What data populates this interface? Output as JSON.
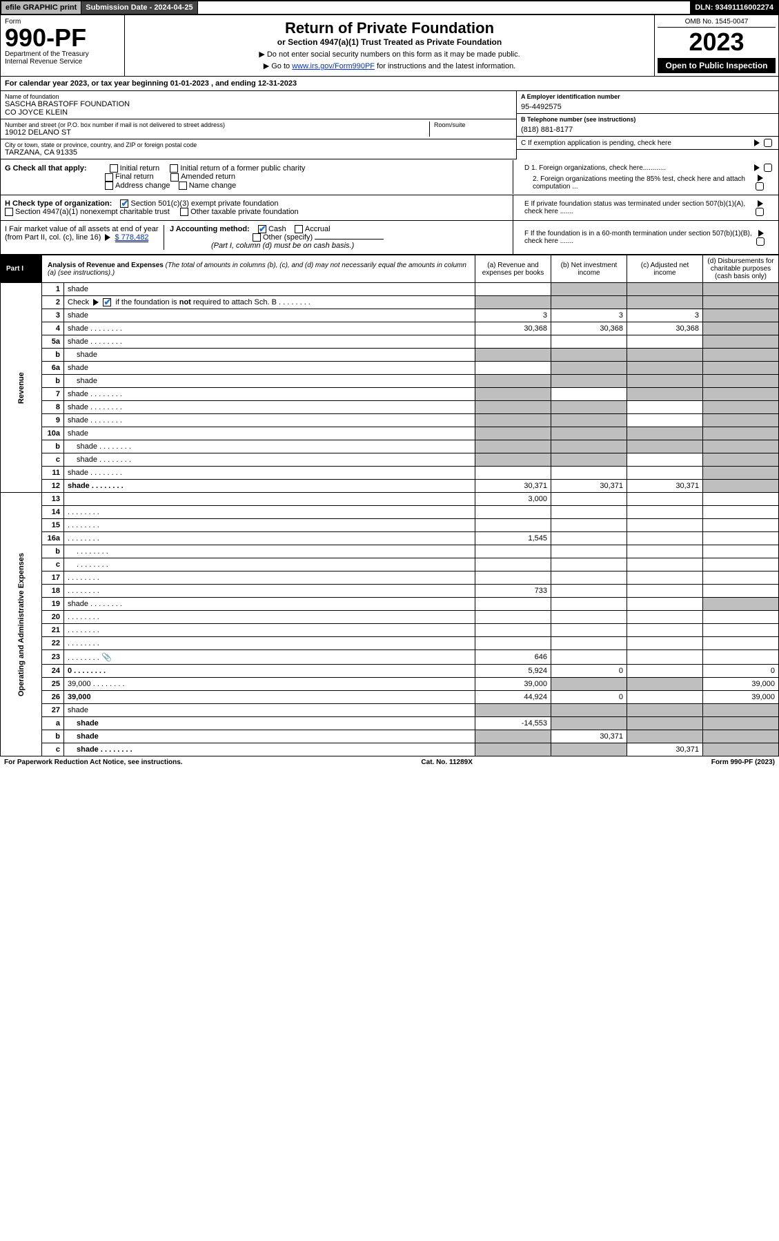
{
  "topbar": {
    "efile": "efile GRAPHIC print",
    "subdate_label": "Submission Date - 2024-04-25",
    "dln": "DLN: 93491116002274"
  },
  "header": {
    "form_label": "Form",
    "form_num": "990-PF",
    "dept": "Department of the Treasury",
    "irs": "Internal Revenue Service",
    "title": "Return of Private Foundation",
    "subtitle": "or Section 4947(a)(1) Trust Treated as Private Foundation",
    "instr1": "▶ Do not enter social security numbers on this form as it may be made public.",
    "instr2_pre": "▶ Go to ",
    "instr2_link": "www.irs.gov/Form990PF",
    "instr2_post": " for instructions and the latest information.",
    "omb": "OMB No. 1545-0047",
    "year": "2023",
    "open_public": "Open to Public Inspection"
  },
  "cal": "For calendar year 2023, or tax year beginning 01-01-2023               , and ending 12-31-2023",
  "info": {
    "name_lbl": "Name of foundation",
    "name_val": "SASCHA BRASTOFF FOUNDATION\nCO JOYCE KLEIN",
    "ein_lbl": "A Employer identification number",
    "ein_val": "95-4492575",
    "addr_lbl": "Number and street (or P.O. box number if mail is not delivered to street address)",
    "addr_val": "19012 DELANO ST",
    "room_lbl": "Room/suite",
    "tel_lbl": "B Telephone number (see instructions)",
    "tel_val": "(818) 881-8177",
    "city_lbl": "City or town, state or province, country, and ZIP or foreign postal code",
    "city_val": "TARZANA, CA  91335",
    "c_lbl": "C If exemption application is pending, check here"
  },
  "checks": {
    "g_lbl": "G Check all that apply:",
    "g_opts": [
      "Initial return",
      "Initial return of a former public charity",
      "Final return",
      "Amended return",
      "Address change",
      "Name change"
    ],
    "d1": "D 1. Foreign organizations, check here............",
    "d2": "2. Foreign organizations meeting the 85% test, check here and attach computation ...",
    "h_lbl": "H Check type of organization:",
    "h_501": "Section 501(c)(3) exempt private foundation",
    "h_4947": "Section 4947(a)(1) nonexempt charitable trust",
    "h_other": "Other taxable private foundation",
    "e_lbl": "E If private foundation status was terminated under section 507(b)(1)(A), check here .......",
    "i_lbl": "I Fair market value of all assets at end of year (from Part II, col. (c), line 16)",
    "i_val": "$  778,482",
    "j_lbl": "J Accounting method:",
    "j_cash": "Cash",
    "j_accrual": "Accrual",
    "j_other": "Other (specify)",
    "j_note": "(Part I, column (d) must be on cash basis.)",
    "f_lbl": "F If the foundation is in a 60-month termination under section 507(b)(1)(B), check here ......."
  },
  "part1": {
    "label": "Part I",
    "title": "Analysis of Revenue and Expenses",
    "note": "(The total of amounts in columns (b), (c), and (d) may not necessarily equal the amounts in column (a) (see instructions).)",
    "col_a": "(a) Revenue and expenses per books",
    "col_b": "(b) Net investment income",
    "col_c": "(c) Adjusted net income",
    "col_d": "(d) Disbursements for charitable purposes (cash basis only)"
  },
  "side_labels": {
    "rev": "Revenue",
    "exp": "Operating and Administrative Expenses"
  },
  "rows": [
    {
      "n": "1",
      "d": "shade",
      "a": "",
      "b": "shade",
      "c": "shade"
    },
    {
      "n": "2",
      "d": "shade",
      "dots": 1,
      "a": "shade",
      "b": "shade",
      "c": "shade"
    },
    {
      "n": "3",
      "d": "shade",
      "a": "3",
      "b": "3",
      "c": "3"
    },
    {
      "n": "4",
      "d": "shade",
      "dots": 1,
      "a": "30,368",
      "b": "30,368",
      "c": "30,368"
    },
    {
      "n": "5a",
      "d": "shade",
      "dots": 1,
      "a": "",
      "b": "",
      "c": ""
    },
    {
      "n": "b",
      "d": "shade",
      "a": "shade",
      "b": "shade",
      "c": "shade",
      "indent": 1
    },
    {
      "n": "6a",
      "d": "shade",
      "a": "",
      "b": "shade",
      "c": "shade"
    },
    {
      "n": "b",
      "d": "shade",
      "a": "shade",
      "b": "shade",
      "c": "shade",
      "indent": 1
    },
    {
      "n": "7",
      "d": "shade",
      "dots": 1,
      "a": "shade",
      "b": "",
      "c": "shade"
    },
    {
      "n": "8",
      "d": "shade",
      "dots": 1,
      "a": "shade",
      "b": "shade",
      "c": ""
    },
    {
      "n": "9",
      "d": "shade",
      "dots": 1,
      "a": "shade",
      "b": "shade",
      "c": ""
    },
    {
      "n": "10a",
      "d": "shade",
      "a": "shade",
      "b": "shade",
      "c": "shade"
    },
    {
      "n": "b",
      "d": "shade",
      "dots": 1,
      "a": "shade",
      "b": "shade",
      "c": "shade",
      "indent": 1
    },
    {
      "n": "c",
      "d": "shade",
      "dots": 1,
      "a": "shade",
      "b": "shade",
      "c": "",
      "indent": 1
    },
    {
      "n": "11",
      "d": "shade",
      "dots": 1,
      "a": "",
      "b": "",
      "c": ""
    },
    {
      "n": "12",
      "d": "shade",
      "dots": 1,
      "bold": 1,
      "a": "30,371",
      "b": "30,371",
      "c": "30,371"
    },
    {
      "n": "13",
      "d": "",
      "a": "3,000",
      "b": "",
      "c": ""
    },
    {
      "n": "14",
      "d": "",
      "dots": 1,
      "a": "",
      "b": "",
      "c": ""
    },
    {
      "n": "15",
      "d": "",
      "dots": 1,
      "a": "",
      "b": "",
      "c": ""
    },
    {
      "n": "16a",
      "d": "",
      "dots": 1,
      "a": "1,545",
      "b": "",
      "c": ""
    },
    {
      "n": "b",
      "d": "",
      "dots": 1,
      "a": "",
      "b": "",
      "c": "",
      "indent": 1
    },
    {
      "n": "c",
      "d": "",
      "dots": 1,
      "a": "",
      "b": "",
      "c": "",
      "indent": 1
    },
    {
      "n": "17",
      "d": "",
      "dots": 1,
      "a": "",
      "b": "",
      "c": ""
    },
    {
      "n": "18",
      "d": "",
      "dots": 1,
      "a": "733",
      "b": "",
      "c": ""
    },
    {
      "n": "19",
      "d": "shade",
      "dots": 1,
      "a": "",
      "b": "",
      "c": ""
    },
    {
      "n": "20",
      "d": "",
      "dots": 1,
      "a": "",
      "b": "",
      "c": ""
    },
    {
      "n": "21",
      "d": "",
      "dots": 1,
      "a": "",
      "b": "",
      "c": ""
    },
    {
      "n": "22",
      "d": "",
      "dots": 1,
      "a": "",
      "b": "",
      "c": ""
    },
    {
      "n": "23",
      "d": "",
      "dots": 1,
      "a": "646",
      "b": "",
      "c": "",
      "attach": 1
    },
    {
      "n": "24",
      "d": "0",
      "dots": 1,
      "bold": 1,
      "a": "5,924",
      "b": "0",
      "c": ""
    },
    {
      "n": "25",
      "d": "39,000",
      "dots": 1,
      "a": "39,000",
      "b": "shade",
      "c": "shade"
    },
    {
      "n": "26",
      "d": "39,000",
      "bold": 1,
      "a": "44,924",
      "b": "0",
      "c": ""
    },
    {
      "n": "27",
      "d": "shade",
      "a": "shade",
      "b": "shade",
      "c": "shade"
    },
    {
      "n": "a",
      "d": "shade",
      "bold": 1,
      "a": "-14,553",
      "b": "shade",
      "c": "shade",
      "indent": 1
    },
    {
      "n": "b",
      "d": "shade",
      "bold": 1,
      "a": "shade",
      "b": "30,371",
      "c": "shade",
      "indent": 1
    },
    {
      "n": "c",
      "d": "shade",
      "dots": 1,
      "bold": 1,
      "a": "shade",
      "b": "shade",
      "c": "30,371",
      "indent": 1
    }
  ],
  "footer": {
    "left": "For Paperwork Reduction Act Notice, see instructions.",
    "center": "Cat. No. 11289X",
    "right": "Form 990-PF (2023)"
  },
  "colors": {
    "shade": "#bfbfbf",
    "link": "#0033cc",
    "check": "#1976d2"
  }
}
